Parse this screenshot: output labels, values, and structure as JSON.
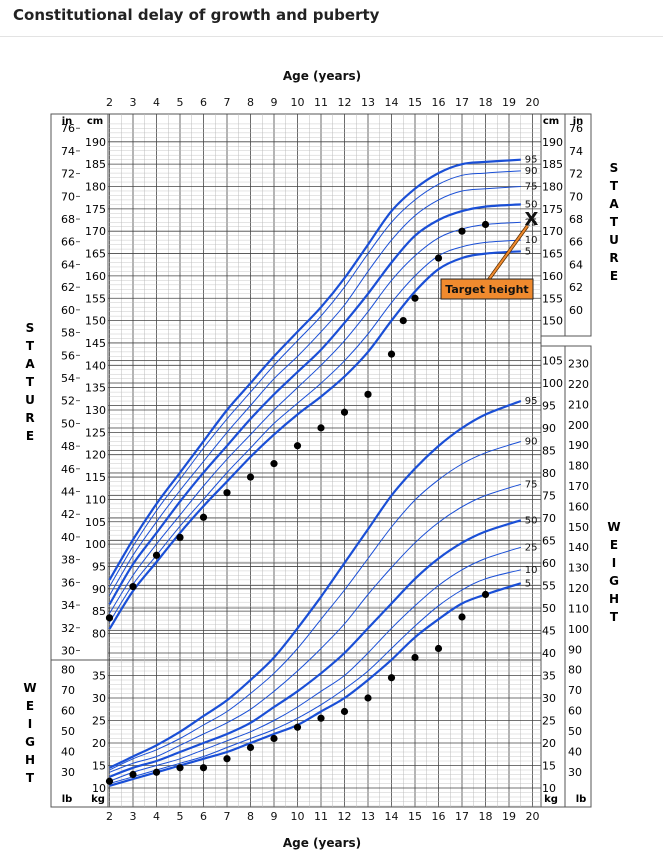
{
  "page": {
    "title": "Constitutional delay of growth and puberty"
  },
  "chart_data": {
    "type": "line",
    "title": "Constitutional delay of growth and puberty",
    "xlabel": "Age (years)",
    "x_ticks": [
      2,
      3,
      4,
      5,
      6,
      7,
      8,
      9,
      10,
      11,
      12,
      13,
      14,
      15,
      16,
      17,
      18,
      19,
      20
    ],
    "xlim": [
      2,
      20
    ],
    "units": {
      "inch": "in",
      "centimeter": "cm",
      "kilogram": "kg",
      "pound": "lb"
    },
    "side_labels": {
      "stature": "STATURE",
      "weight": "WEIGHT"
    },
    "stature_cm_ticks": [
      80,
      85,
      90,
      95,
      100,
      105,
      110,
      115,
      120,
      125,
      130,
      135,
      140,
      145,
      150,
      155,
      160,
      165,
      170,
      175,
      180,
      185,
      190
    ],
    "stature_cm_ticks_right": [
      150,
      155,
      160,
      165,
      170,
      175,
      180,
      185,
      190
    ],
    "stature_in_ticks": [
      30,
      32,
      34,
      36,
      38,
      40,
      42,
      44,
      46,
      48,
      50,
      52,
      54,
      56,
      58,
      60,
      62,
      64,
      66,
      68,
      70,
      72,
      74,
      76
    ],
    "stature_in_ticks_right": [
      60,
      62,
      64,
      66,
      68,
      70,
      72,
      74,
      76
    ],
    "weight_kg_ticks_left": [
      10,
      15,
      20,
      25,
      30,
      35
    ],
    "weight_lb_ticks_left": [
      30,
      40,
      50,
      60,
      70,
      80
    ],
    "weight_kg_ticks_right": [
      10,
      15,
      20,
      25,
      30,
      35,
      40,
      45,
      50,
      55,
      60,
      65,
      70,
      75,
      80,
      85,
      90,
      95,
      100,
      105
    ],
    "weight_lb_ticks_right": [
      30,
      40,
      50,
      60,
      70,
      80,
      90,
      100,
      110,
      120,
      130,
      140,
      150,
      160,
      170,
      180,
      190,
      200,
      210,
      220,
      230
    ],
    "percentile_labels": [
      "95",
      "90",
      "75",
      "50",
      "25",
      "10",
      "5"
    ],
    "stature_percentiles": [
      {
        "name": "5",
        "x": [
          2,
          3,
          4,
          5,
          6,
          7,
          8,
          9,
          10,
          11,
          12,
          13,
          14,
          15,
          16,
          17,
          18,
          19.5
        ],
        "values": [
          81,
          89.5,
          96,
          102.5,
          108.5,
          114,
          119.5,
          124.5,
          129,
          133,
          137.5,
          143,
          150,
          156.5,
          161.5,
          164,
          165,
          165.5
        ]
      },
      {
        "name": "10",
        "x": [
          2,
          3,
          4,
          5,
          6,
          7,
          8,
          9,
          10,
          11,
          12,
          13,
          14,
          15,
          16,
          17,
          18,
          19.5
        ],
        "values": [
          82.5,
          91,
          97.5,
          104,
          110,
          116,
          121.5,
          127,
          131.5,
          136,
          141,
          147,
          154,
          160,
          164.5,
          166.5,
          167.5,
          168
        ]
      },
      {
        "name": "25",
        "x": [
          2,
          3,
          4,
          5,
          6,
          7,
          8,
          9,
          10,
          11,
          12,
          13,
          14,
          15,
          16,
          17,
          18,
          19.5
        ],
        "values": [
          84.5,
          93,
          100,
          106.5,
          113,
          119,
          124.5,
          130,
          135,
          140,
          145.5,
          152,
          159,
          164.5,
          168.5,
          170.5,
          171.5,
          172
        ]
      },
      {
        "name": "50",
        "x": [
          2,
          3,
          4,
          5,
          6,
          7,
          8,
          9,
          10,
          11,
          12,
          13,
          14,
          15,
          16,
          17,
          18,
          19.5
        ],
        "values": [
          86.5,
          95.5,
          102.5,
          109.5,
          116,
          122,
          128,
          133.5,
          138.5,
          143.5,
          149.5,
          156,
          163,
          169,
          172.5,
          174.5,
          175.5,
          176
        ]
      },
      {
        "name": "75",
        "x": [
          2,
          3,
          4,
          5,
          6,
          7,
          8,
          9,
          10,
          11,
          12,
          13,
          14,
          15,
          16,
          17,
          18,
          19.5
        ],
        "values": [
          88.5,
          97.5,
          105,
          112,
          118.5,
          125,
          131,
          137,
          142,
          147.5,
          153.5,
          161,
          168,
          173.5,
          177,
          179,
          179.5,
          180
        ]
      },
      {
        "name": "90",
        "x": [
          2,
          3,
          4,
          5,
          6,
          7,
          8,
          9,
          10,
          11,
          12,
          13,
          14,
          15,
          16,
          17,
          18,
          19.5
        ],
        "values": [
          90.5,
          99.5,
          107.5,
          114.5,
          121.5,
          128,
          134,
          140,
          145.5,
          151,
          157.5,
          165,
          172,
          177,
          180.5,
          182.5,
          183,
          183.5
        ]
      },
      {
        "name": "95",
        "x": [
          2,
          3,
          4,
          5,
          6,
          7,
          8,
          9,
          10,
          11,
          12,
          13,
          14,
          15,
          16,
          17,
          18,
          19.5
        ],
        "values": [
          92,
          101,
          109,
          116,
          123,
          130,
          136,
          142,
          147.5,
          153,
          159.5,
          167,
          174.5,
          179.5,
          183,
          185,
          185.5,
          186
        ]
      }
    ],
    "weight_percentiles": [
      {
        "name": "5",
        "x": [
          2,
          3,
          4,
          5,
          6,
          7,
          8,
          9,
          10,
          11,
          12,
          13,
          14,
          15,
          16,
          17,
          18,
          19.5
        ],
        "values": [
          10.5,
          12,
          13.5,
          15,
          16.5,
          18,
          20,
          22,
          24,
          27,
          30,
          34,
          38.5,
          43.5,
          47.5,
          51,
          53,
          55.5
        ]
      },
      {
        "name": "10",
        "x": [
          2,
          3,
          4,
          5,
          6,
          7,
          8,
          9,
          10,
          11,
          12,
          13,
          14,
          15,
          16,
          17,
          18,
          19.5
        ],
        "values": [
          11,
          12.5,
          14,
          15.5,
          17,
          19,
          21,
          23,
          25.5,
          28.5,
          32,
          36,
          41,
          46,
          50.5,
          54,
          56.5,
          58.5
        ]
      },
      {
        "name": "25",
        "x": [
          2,
          3,
          4,
          5,
          6,
          7,
          8,
          9,
          10,
          11,
          12,
          13,
          14,
          15,
          16,
          17,
          18,
          19.5
        ],
        "values": [
          11.5,
          13.5,
          15,
          16.5,
          18.5,
          20.5,
          22.5,
          25,
          28,
          31.5,
          35,
          40,
          45.5,
          50.5,
          55,
          58.5,
          61,
          63.5
        ]
      },
      {
        "name": "50",
        "x": [
          2,
          3,
          4,
          5,
          6,
          7,
          8,
          9,
          10,
          11,
          12,
          13,
          14,
          15,
          16,
          17,
          18,
          19.5
        ],
        "values": [
          12.5,
          14.5,
          16,
          18,
          20,
          22,
          24.5,
          28,
          31.5,
          35.5,
          40,
          45.5,
          51,
          56.5,
          61,
          64.5,
          67,
          69.5
        ]
      },
      {
        "name": "75",
        "x": [
          2,
          3,
          4,
          5,
          6,
          7,
          8,
          9,
          10,
          11,
          12,
          13,
          14,
          15,
          16,
          17,
          18,
          19.5
        ],
        "values": [
          13.5,
          15.5,
          17,
          19.5,
          22,
          24.5,
          27.5,
          31.5,
          36,
          41,
          46.5,
          53,
          59,
          64.5,
          69,
          72.5,
          75,
          77.5
        ]
      },
      {
        "name": "90",
        "x": [
          2,
          3,
          4,
          5,
          6,
          7,
          8,
          9,
          10,
          11,
          12,
          13,
          14,
          15,
          16,
          17,
          18,
          19.5
        ],
        "values": [
          14,
          16.5,
          18.5,
          21,
          24,
          27,
          31,
          35.5,
          41,
          47.5,
          54,
          61,
          68,
          74,
          78.5,
          82,
          84.5,
          87
        ]
      },
      {
        "name": "95",
        "x": [
          2,
          3,
          4,
          5,
          6,
          7,
          8,
          9,
          10,
          11,
          12,
          13,
          14,
          15,
          16,
          17,
          18,
          19.5
        ],
        "values": [
          14.5,
          17,
          19.5,
          22.5,
          26,
          29.5,
          34,
          39,
          45.5,
          52.5,
          60,
          67.5,
          75,
          81,
          86,
          90,
          93,
          96
        ]
      }
    ],
    "patient_stature": {
      "x": [
        2,
        3,
        4,
        5,
        6,
        7,
        8,
        9,
        10,
        11,
        12,
        13,
        14,
        14.5,
        15,
        16,
        17,
        18
      ],
      "values": [
        83.5,
        90.5,
        97.5,
        101.5,
        106,
        111.5,
        115,
        118,
        122,
        126,
        129.5,
        133.5,
        142.5,
        150,
        155,
        164,
        170,
        171.5
      ]
    },
    "patient_weight": {
      "x": [
        2,
        3,
        4,
        5,
        6,
        7,
        8,
        9,
        10,
        11,
        12,
        13,
        14,
        15,
        16,
        17,
        18
      ],
      "values": [
        11.5,
        13,
        13.5,
        14.5,
        14.5,
        16.5,
        19,
        21,
        23.5,
        25.5,
        27,
        30,
        34.5,
        39,
        41,
        48,
        53
      ]
    },
    "target": {
      "label": "Target height",
      "marker": "X",
      "age": 20,
      "height_cm": 173
    },
    "colors": {
      "percentile": "#1a4fd6",
      "grid_major": "#222222",
      "grid_minor": "#bbbbbb",
      "patient": "#000000",
      "target_box": "#f08a2e",
      "target_arrow": "#f08a2e"
    },
    "grid": true
  }
}
